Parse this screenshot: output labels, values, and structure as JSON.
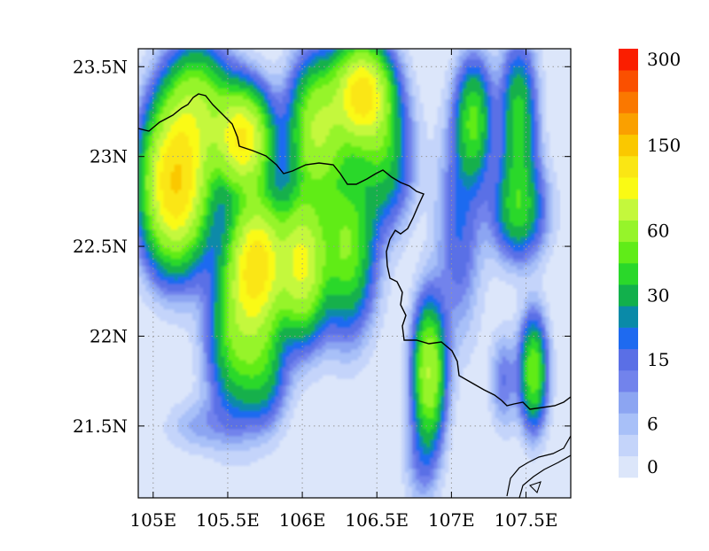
{
  "chart_data": {
    "type": "heatmap",
    "title": "",
    "xlabel": "",
    "ylabel": "",
    "xlim": [
      104.9,
      107.8
    ],
    "ylim": [
      21.1,
      23.6
    ],
    "x_ticks": [
      105,
      105.5,
      106,
      106.5,
      107,
      107.5
    ],
    "x_tick_labels": [
      "105E",
      "105.5E",
      "106E",
      "106.5E",
      "107E",
      "107.5E"
    ],
    "y_ticks": [
      21.5,
      22,
      22.5,
      23,
      23.5
    ],
    "y_tick_labels": [
      "21.5N",
      "22N",
      "22.5N",
      "23N",
      "23.5N"
    ],
    "grid": true,
    "grid_style": "dotted",
    "colorbar": {
      "placement": "right",
      "levels": [
        0,
        3,
        6,
        9,
        12,
        15,
        20,
        25,
        30,
        40,
        50,
        60,
        80,
        100,
        120,
        150,
        180,
        220,
        260,
        300
      ],
      "labels": [
        {
          "level_index": 0,
          "text": "0"
        },
        {
          "level_index": 2,
          "text": "6"
        },
        {
          "level_index": 5,
          "text": "15"
        },
        {
          "level_index": 8,
          "text": "30"
        },
        {
          "level_index": 11,
          "text": "60"
        },
        {
          "level_index": 15,
          "text": "150"
        },
        {
          "level_index": 19,
          "text": "300"
        }
      ],
      "colors": [
        "#dce6fa",
        "#c4d4fa",
        "#a8c0f8",
        "#8ca5f2",
        "#7283ec",
        "#5a6fe6",
        "#1e6af0",
        "#0a8aa8",
        "#12b04c",
        "#2ad82a",
        "#60ec18",
        "#96f42a",
        "#c4f83c",
        "#fafa14",
        "#fae614",
        "#fac800",
        "#faa000",
        "#fa7800",
        "#fa5000",
        "#fa1e00"
      ]
    },
    "field": {
      "unit_note": "",
      "features": [
        {
          "lon": 105.15,
          "lat": 22.85,
          "value": 150,
          "sx": 0.14,
          "sy": 0.28
        },
        {
          "lon": 105.3,
          "lat": 23.3,
          "value": 60,
          "sx": 0.14,
          "sy": 0.22
        },
        {
          "lon": 105.6,
          "lat": 23.1,
          "value": 120,
          "sx": 0.12,
          "sy": 0.18
        },
        {
          "lon": 105.7,
          "lat": 22.4,
          "value": 130,
          "sx": 0.12,
          "sy": 0.25
        },
        {
          "lon": 105.55,
          "lat": 22.0,
          "value": 50,
          "sx": 0.12,
          "sy": 0.3
        },
        {
          "lon": 105.75,
          "lat": 21.8,
          "value": 30,
          "sx": 0.1,
          "sy": 0.2
        },
        {
          "lon": 106.0,
          "lat": 22.4,
          "value": 100,
          "sx": 0.1,
          "sy": 0.25
        },
        {
          "lon": 106.1,
          "lat": 23.15,
          "value": 80,
          "sx": 0.12,
          "sy": 0.25
        },
        {
          "lon": 106.4,
          "lat": 23.35,
          "value": 130,
          "sx": 0.12,
          "sy": 0.18
        },
        {
          "lon": 106.3,
          "lat": 22.5,
          "value": 60,
          "sx": 0.12,
          "sy": 0.3
        },
        {
          "lon": 106.55,
          "lat": 23.0,
          "value": 40,
          "sx": 0.12,
          "sy": 0.25
        },
        {
          "lon": 107.15,
          "lat": 23.2,
          "value": 50,
          "sx": 0.08,
          "sy": 0.22
        },
        {
          "lon": 107.05,
          "lat": 22.6,
          "value": 20,
          "sx": 0.1,
          "sy": 0.4
        },
        {
          "lon": 107.45,
          "lat": 23.2,
          "value": 45,
          "sx": 0.08,
          "sy": 0.28
        },
        {
          "lon": 107.45,
          "lat": 22.7,
          "value": 40,
          "sx": 0.12,
          "sy": 0.18
        },
        {
          "lon": 106.85,
          "lat": 21.8,
          "value": 80,
          "sx": 0.07,
          "sy": 0.25
        },
        {
          "lon": 106.8,
          "lat": 21.3,
          "value": 12,
          "sx": 0.08,
          "sy": 0.18
        },
        {
          "lon": 107.55,
          "lat": 21.8,
          "value": 60,
          "sx": 0.06,
          "sy": 0.2
        },
        {
          "lon": 107.35,
          "lat": 21.75,
          "value": 15,
          "sx": 0.06,
          "sy": 0.18
        },
        {
          "lon": 105.3,
          "lat": 21.5,
          "value": 9,
          "sx": 0.15,
          "sy": 0.1
        }
      ]
    },
    "boundary_color": "#000000"
  }
}
